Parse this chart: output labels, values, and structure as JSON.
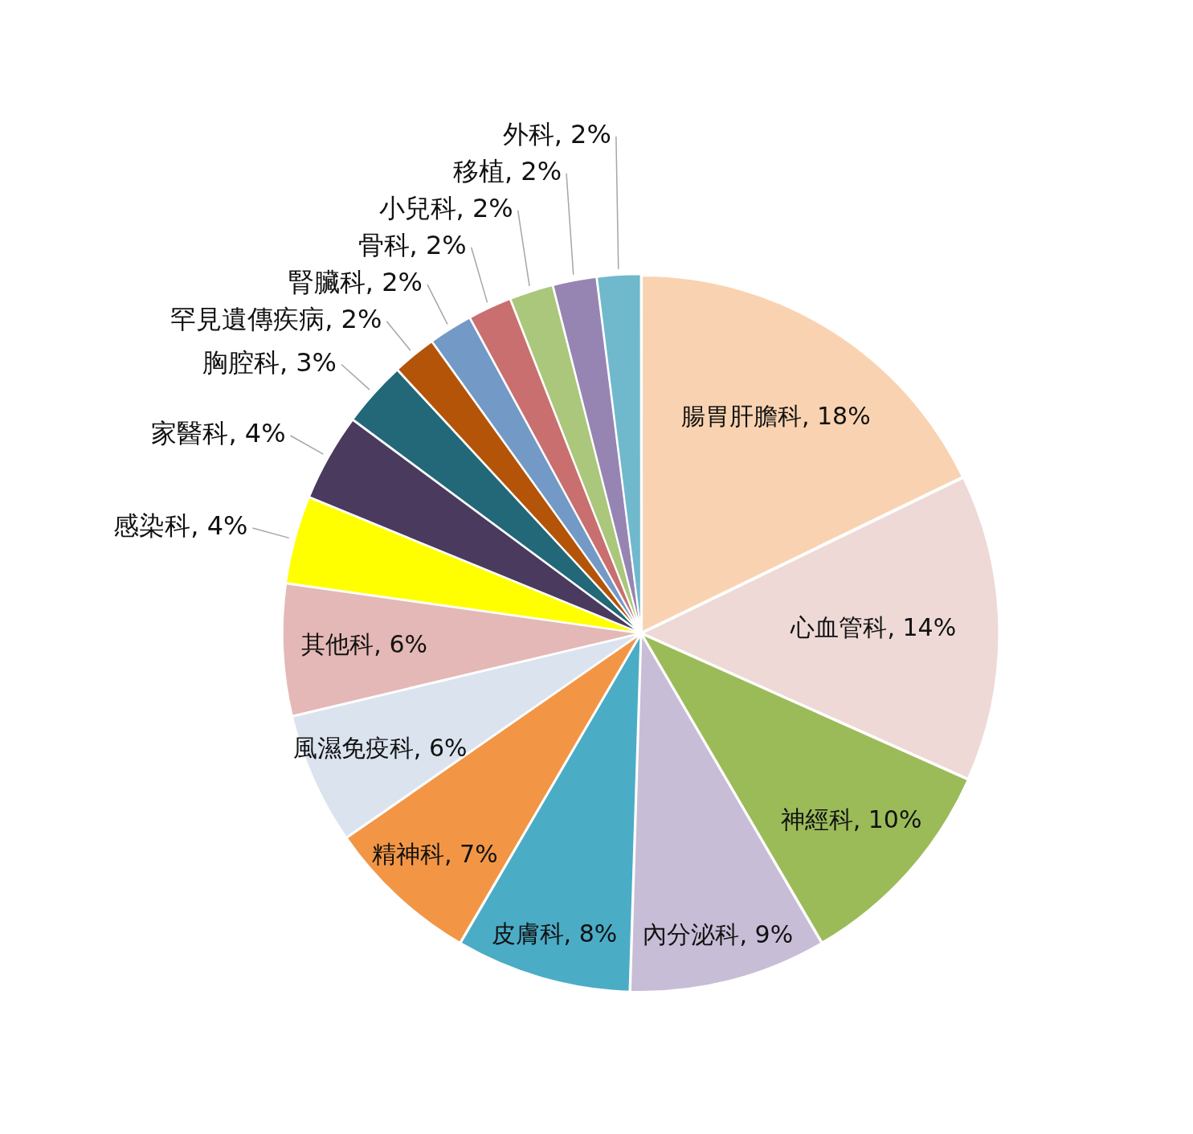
{
  "chart_data": {
    "type": "pie",
    "categories": [
      "腸胃肝膽科",
      "心血管科",
      "神經科",
      "內分泌科",
      "皮膚科",
      "精神科",
      "風濕免疫科",
      "其他科",
      "感染科",
      "家醫科",
      "胸腔科",
      "罕見遺傳疾病",
      "腎臟科",
      "骨科",
      "小兒科",
      "移植",
      "外科"
    ],
    "values": [
      18,
      14,
      10,
      9,
      8,
      7,
      6,
      6,
      4,
      4,
      3,
      2,
      2,
      2,
      2,
      2,
      2
    ],
    "value_labels": [
      "18%",
      "14%",
      "10%",
      "9%",
      "8%",
      "7%",
      "6%",
      "6%",
      "4%",
      "4%",
      "3%",
      "2%",
      "2%",
      "2%",
      "2%",
      "2%",
      "2%"
    ],
    "colors": [
      "#f9d3b1",
      "#eed9d6",
      "#9bbb59",
      "#c8bdd6",
      "#4bacc6",
      "#f29646",
      "#dbe3ef",
      "#e4b8b6",
      "#ffff00",
      "#4a3a5e",
      "#226878",
      "#b35408",
      "#7399c6",
      "#c96f6f",
      "#aac77c",
      "#9684b2",
      "#70b9cc"
    ]
  }
}
